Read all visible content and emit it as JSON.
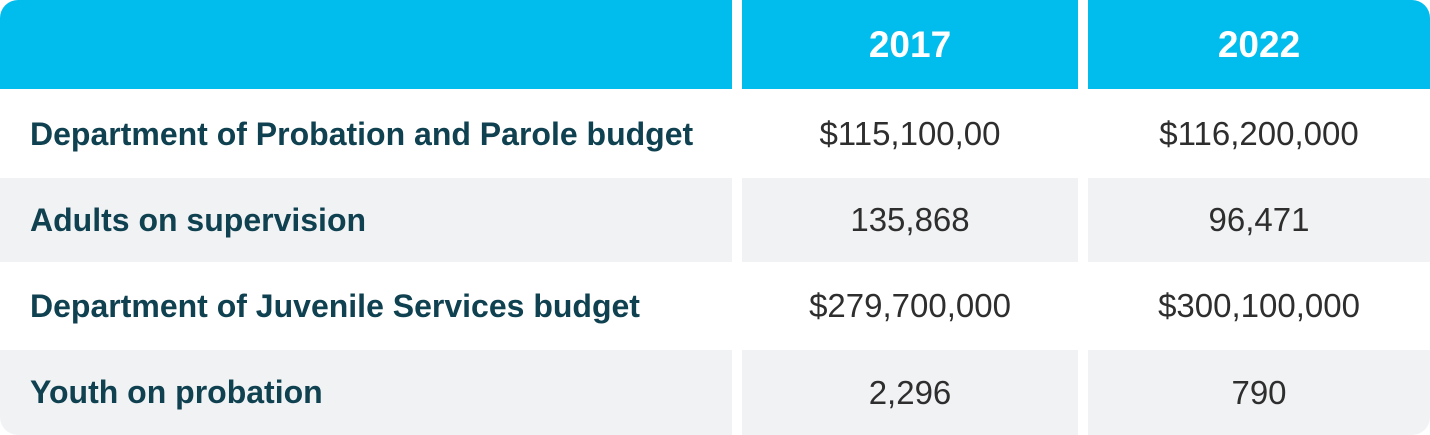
{
  "header": {
    "columns": [
      "",
      "2017",
      "2022"
    ]
  },
  "rows": [
    {
      "label": "Department of Probation and Parole budget",
      "y2017": "$115,100,00",
      "y2022": "$116,200,000"
    },
    {
      "label": "Adults on supervision",
      "y2017": "135,868",
      "y2022": "96,471"
    },
    {
      "label": "Department of Juvenile Services budget",
      "y2017": "$279,700,000",
      "y2022": "$300,100,000"
    },
    {
      "label": "Youth on probation",
      "y2017": "2,296",
      "y2022": "790"
    }
  ],
  "colors": {
    "header_bg": "#00bdee",
    "header_text": "#ffffff",
    "label_text": "#0f4150",
    "alt_row_bg": "#f1f2f4"
  }
}
